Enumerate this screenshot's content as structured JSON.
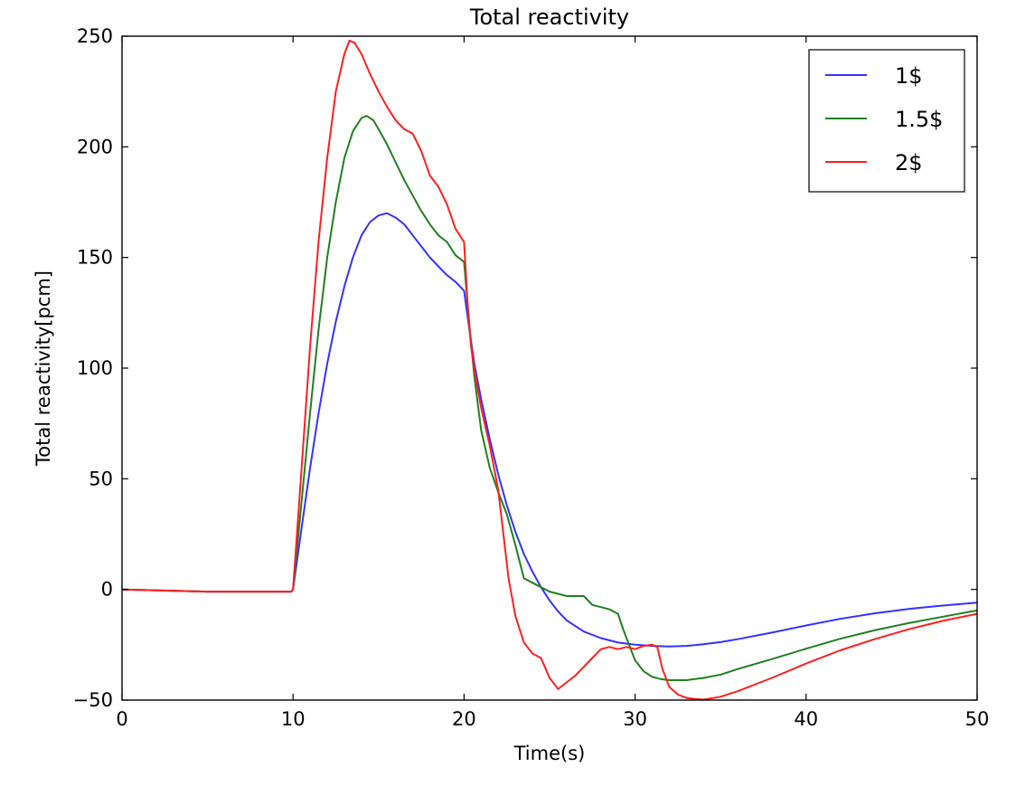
{
  "chart_data": {
    "type": "line",
    "title": "Total reactivity",
    "xlabel": "Time(s)",
    "ylabel": "Total reactivity[pcm]",
    "xlim": [
      0,
      50
    ],
    "ylim": [
      -50,
      250
    ],
    "xticks": [
      0,
      10,
      20,
      30,
      40,
      50
    ],
    "yticks": [
      -50,
      0,
      50,
      100,
      150,
      200,
      250
    ],
    "xtick_labels": [
      "0",
      "10",
      "20",
      "30",
      "40",
      "50"
    ],
    "ytick_labels": [
      "−50",
      "0",
      "50",
      "100",
      "150",
      "200",
      "250"
    ],
    "grid": false,
    "legend_position": "top-right",
    "series": [
      {
        "name": "1$",
        "color": "#3333ff",
        "points": [
          [
            0,
            0
          ],
          [
            5,
            -1
          ],
          [
            9.9,
            -1
          ],
          [
            10,
            0
          ],
          [
            10.5,
            28
          ],
          [
            11,
            55
          ],
          [
            11.5,
            80
          ],
          [
            12,
            102
          ],
          [
            12.5,
            121
          ],
          [
            13,
            137
          ],
          [
            13.5,
            150
          ],
          [
            14,
            160
          ],
          [
            14.5,
            166
          ],
          [
            15,
            169
          ],
          [
            15.5,
            170
          ],
          [
            16,
            168
          ],
          [
            16.5,
            165
          ],
          [
            17,
            160
          ],
          [
            17.5,
            155
          ],
          [
            18,
            150
          ],
          [
            18.5,
            146
          ],
          [
            19,
            142
          ],
          [
            19.5,
            139
          ],
          [
            20,
            135
          ],
          [
            20.3,
            118
          ],
          [
            20.6,
            102
          ],
          [
            21,
            86
          ],
          [
            21.5,
            68
          ],
          [
            22,
            52
          ],
          [
            22.5,
            38
          ],
          [
            23,
            26
          ],
          [
            23.5,
            16
          ],
          [
            24,
            8
          ],
          [
            24.5,
            1
          ],
          [
            25,
            -5
          ],
          [
            25.5,
            -10
          ],
          [
            26,
            -14
          ],
          [
            27,
            -19
          ],
          [
            28,
            -22
          ],
          [
            29,
            -24
          ],
          [
            30,
            -25
          ],
          [
            31,
            -25.5
          ],
          [
            32,
            -25.8
          ],
          [
            33,
            -25.5
          ],
          [
            34,
            -24.8
          ],
          [
            35,
            -23.8
          ],
          [
            36,
            -22.5
          ],
          [
            38,
            -19.5
          ],
          [
            40,
            -16.3
          ],
          [
            42,
            -13.3
          ],
          [
            44,
            -10.8
          ],
          [
            46,
            -8.8
          ],
          [
            48,
            -7.3
          ],
          [
            50,
            -6
          ]
        ]
      },
      {
        "name": "1.5$",
        "color": "#208020",
        "points": [
          [
            0,
            0
          ],
          [
            5,
            -1
          ],
          [
            9.9,
            -1
          ],
          [
            10,
            0
          ],
          [
            10.5,
            40
          ],
          [
            11,
            80
          ],
          [
            11.5,
            118
          ],
          [
            12,
            150
          ],
          [
            12.5,
            175
          ],
          [
            13,
            195
          ],
          [
            13.5,
            207
          ],
          [
            14,
            213
          ],
          [
            14.3,
            214
          ],
          [
            14.7,
            212
          ],
          [
            15,
            208
          ],
          [
            15.5,
            201
          ],
          [
            16,
            193
          ],
          [
            16.5,
            185
          ],
          [
            17,
            178
          ],
          [
            17.5,
            171
          ],
          [
            18,
            165
          ],
          [
            18.5,
            160
          ],
          [
            19,
            157
          ],
          [
            19.5,
            151
          ],
          [
            20,
            148
          ],
          [
            20.3,
            120
          ],
          [
            20.6,
            96
          ],
          [
            21,
            72
          ],
          [
            21.5,
            55
          ],
          [
            22,
            44
          ],
          [
            22.5,
            34
          ],
          [
            23,
            20
          ],
          [
            23.5,
            5
          ],
          [
            24,
            3
          ],
          [
            25,
            -1
          ],
          [
            26,
            -3
          ],
          [
            26.5,
            -3
          ],
          [
            27,
            -3
          ],
          [
            27.5,
            -7
          ],
          [
            28,
            -8
          ],
          [
            28.5,
            -9
          ],
          [
            29,
            -11
          ],
          [
            29.3,
            -18
          ],
          [
            29.7,
            -26
          ],
          [
            30,
            -32
          ],
          [
            30.5,
            -37
          ],
          [
            31,
            -39.5
          ],
          [
            31.5,
            -40.5
          ],
          [
            32,
            -41
          ],
          [
            33,
            -41
          ],
          [
            34,
            -40
          ],
          [
            35,
            -38.5
          ],
          [
            36,
            -36
          ],
          [
            38,
            -31.5
          ],
          [
            40,
            -26.8
          ],
          [
            42,
            -22.3
          ],
          [
            44,
            -18.5
          ],
          [
            46,
            -15.2
          ],
          [
            48,
            -12.3
          ],
          [
            50,
            -9.5
          ]
        ]
      },
      {
        "name": "2$",
        "color": "#ff2020",
        "points": [
          [
            0,
            0
          ],
          [
            5,
            -1
          ],
          [
            9.9,
            -1
          ],
          [
            10,
            0
          ],
          [
            10.5,
            55
          ],
          [
            11,
            110
          ],
          [
            11.5,
            158
          ],
          [
            12,
            195
          ],
          [
            12.5,
            225
          ],
          [
            13,
            242
          ],
          [
            13.3,
            248
          ],
          [
            13.6,
            247
          ],
          [
            14,
            242
          ],
          [
            14.5,
            233
          ],
          [
            15,
            225
          ],
          [
            15.5,
            218
          ],
          [
            16,
            212
          ],
          [
            16.5,
            208
          ],
          [
            17,
            206
          ],
          [
            17.5,
            198
          ],
          [
            18,
            187
          ],
          [
            18.5,
            182
          ],
          [
            19,
            174
          ],
          [
            19.5,
            163
          ],
          [
            20,
            157
          ],
          [
            20.2,
            130
          ],
          [
            20.4,
            110
          ],
          [
            20.7,
            95
          ],
          [
            21,
            82
          ],
          [
            21.5,
            65
          ],
          [
            22,
            45
          ],
          [
            22.3,
            25
          ],
          [
            22.6,
            5
          ],
          [
            23,
            -12
          ],
          [
            23.5,
            -24
          ],
          [
            24,
            -29
          ],
          [
            24.5,
            -31
          ],
          [
            25,
            -40
          ],
          [
            25.5,
            -45
          ],
          [
            26,
            -42
          ],
          [
            26.5,
            -39
          ],
          [
            27,
            -35
          ],
          [
            27.5,
            -31
          ],
          [
            28,
            -27
          ],
          [
            28.5,
            -26
          ],
          [
            29,
            -27
          ],
          [
            29.5,
            -26
          ],
          [
            30,
            -27
          ],
          [
            30.5,
            -25.5
          ],
          [
            31,
            -25
          ],
          [
            31.3,
            -26
          ],
          [
            31.6,
            -36
          ],
          [
            32,
            -44
          ],
          [
            32.5,
            -47.5
          ],
          [
            33,
            -49
          ],
          [
            33.5,
            -49.5
          ],
          [
            34,
            -49.8
          ],
          [
            35,
            -48.5
          ],
          [
            36,
            -46
          ],
          [
            38,
            -40
          ],
          [
            40,
            -33.5
          ],
          [
            42,
            -27.5
          ],
          [
            44,
            -22.5
          ],
          [
            46,
            -18
          ],
          [
            48,
            -14.2
          ],
          [
            50,
            -11
          ]
        ]
      }
    ]
  }
}
